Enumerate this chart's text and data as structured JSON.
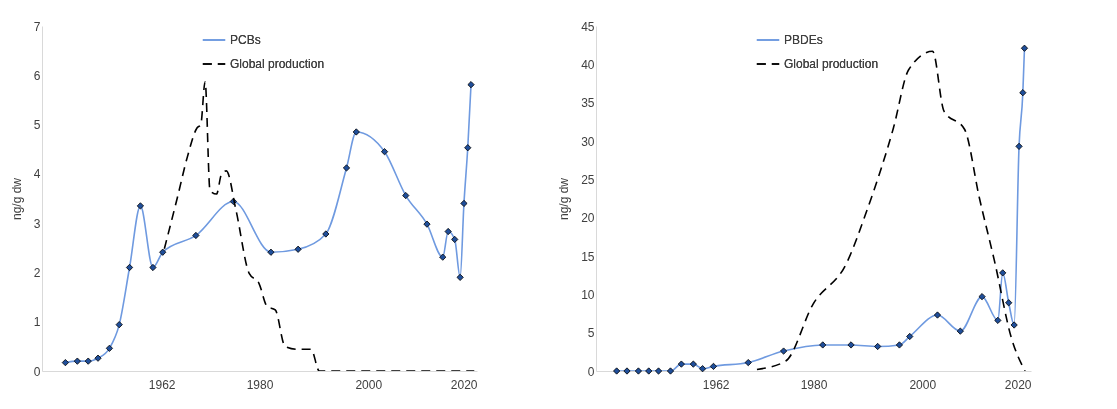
{
  "chart_data": [
    {
      "type": "line",
      "ylabel": "ng/g dw",
      "xlim": [
        1940,
        2020
      ],
      "xticks": [
        1962,
        1980,
        2000,
        2020
      ],
      "ylim": [
        0,
        7
      ],
      "yticks": [
        0,
        1,
        2,
        3,
        4,
        5,
        6,
        7
      ],
      "grid": false,
      "legend": "top",
      "series": [
        {
          "name": "PCBs",
          "color": "#6f9ae0",
          "marker": "diamond",
          "line_style": "solid",
          "x": [
            1944.3,
            1946.5,
            1948.5,
            1950.3,
            1952.4,
            1954.2,
            1956.1,
            1958.1,
            1960.4,
            1962.2,
            1968.3,
            1975.2,
            1982.1,
            1987.1,
            1992.2,
            1996.0,
            1997.8,
            2003.0,
            2006.9,
            2010.8,
            2013.7,
            2014.7,
            2015.9,
            2016.9,
            2017.6,
            2018.3,
            2018.9
          ],
          "values": [
            0.17,
            0.2,
            0.2,
            0.26,
            0.46,
            0.94,
            2.1,
            3.35,
            2.1,
            2.41,
            2.75,
            3.44,
            2.41,
            2.47,
            2.78,
            4.12,
            4.85,
            4.45,
            3.56,
            2.98,
            2.31,
            2.83,
            2.67,
            1.9,
            3.4,
            4.53,
            5.81
          ]
        },
        {
          "name": "Global production",
          "color": "#000000",
          "marker": "none",
          "line_style": "dashed",
          "x": [
            1962.5,
            1964.9,
            1966.7,
            1968.5,
            1969.2,
            1970.0,
            1970.9,
            1972.1,
            1973.0,
            1973.9,
            1975.7,
            1978.1,
            1979.9,
            1981.4,
            1982.9,
            1984.7,
            1987.1,
            1989.5,
            1991.0,
            2019.5
          ],
          "values": [
            2.48,
            3.52,
            4.33,
            4.93,
            5.0,
            5.87,
            3.66,
            3.59,
            3.99,
            4.06,
            3.25,
            1.98,
            1.78,
            1.31,
            1.24,
            0.5,
            0.44,
            0.44,
            0,
            0
          ]
        }
      ]
    },
    {
      "type": "line",
      "ylabel": "ng/g dw",
      "xlim": [
        1940,
        2020
      ],
      "xticks": [
        1962,
        1980,
        2000,
        2020
      ],
      "ylim": [
        0,
        45
      ],
      "yticks": [
        0,
        5,
        10,
        15,
        20,
        25,
        30,
        35,
        40,
        45
      ],
      "grid": false,
      "legend": "top",
      "series": [
        {
          "name": "PBDEs",
          "color": "#6f9ae0",
          "marker": "diamond",
          "line_style": "solid",
          "x": [
            1943.8,
            1945.7,
            1947.8,
            1949.7,
            1951.5,
            1953.7,
            1955.7,
            1957.9,
            1959.6,
            1961.6,
            1968.0,
            1974.5,
            1981.7,
            1986.9,
            1991.8,
            1995.8,
            1997.7,
            2002.8,
            2007.0,
            2011.0,
            2013.9,
            2014.8,
            2015.9,
            2016.9,
            2017.8,
            2018.5,
            2018.8
          ],
          "values": [
            0,
            0,
            0,
            0,
            0,
            0,
            0.9,
            0.9,
            0.3,
            0.6,
            1.1,
            2.6,
            3.4,
            3.4,
            3.2,
            3.4,
            4.5,
            7.3,
            5.2,
            9.7,
            6.6,
            12.8,
            8.9,
            6.0,
            29.3,
            36.3,
            42.1
          ]
        },
        {
          "name": "Global production",
          "color": "#000000",
          "marker": "none",
          "line_style": "dashed",
          "x": [
            1969.6,
            1974.9,
            1979.9,
            1986.1,
            1989.8,
            1994.7,
            1997.5,
            2001.9,
            2004.0,
            2007.8,
            2010.5,
            2013.3,
            2016.4,
            2018.9
          ],
          "values": [
            0.2,
            1.3,
            8.7,
            14.1,
            20.9,
            31.7,
            39.3,
            41.7,
            33.9,
            31.5,
            22.6,
            14.3,
            4.3,
            0
          ]
        }
      ]
    }
  ]
}
